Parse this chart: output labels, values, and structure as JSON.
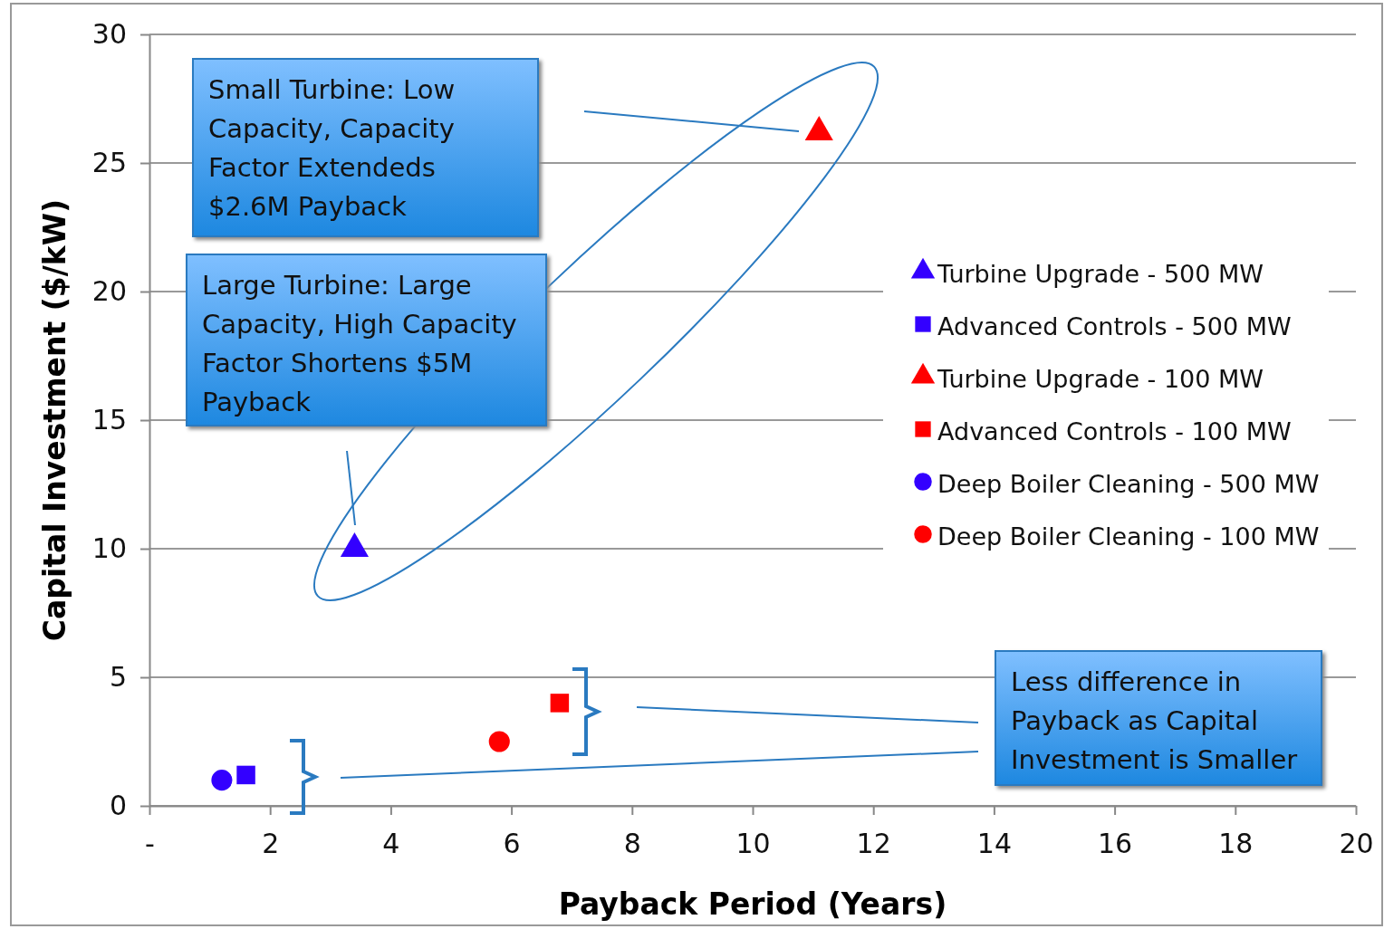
{
  "chart_data": {
    "type": "scatter",
    "xlabel": "Payback Period (Years)",
    "ylabel": "Capital Investment ($/kW)",
    "xlim": [
      0,
      20
    ],
    "xticks": [
      {
        "value": 0,
        "label": "-"
      },
      2,
      4,
      6,
      8,
      10,
      12,
      14,
      16,
      18,
      20
    ],
    "ylim": [
      0,
      30
    ],
    "yticks": [
      0,
      5,
      10,
      15,
      20,
      25,
      30
    ],
    "grid": "y",
    "legend": "right",
    "series": [
      {
        "name": "Turbine Upgrade - 500 MW",
        "color": "#3300ff",
        "marker": "triangle",
        "x": [
          3.4
        ],
        "values": [
          10
        ]
      },
      {
        "name": "Advanced Controls - 500 MW",
        "color": "#3300ff",
        "marker": "square",
        "x": [
          1.6
        ],
        "values": [
          1.2
        ]
      },
      {
        "name": "Turbine Upgrade - 100 MW",
        "color": "#ff0000",
        "marker": "triangle",
        "x": [
          11.1
        ],
        "values": [
          26.2
        ]
      },
      {
        "name": "Advanced Controls - 100 MW",
        "color": "#ff0000",
        "marker": "square",
        "x": [
          6.8
        ],
        "values": [
          4
        ]
      },
      {
        "name": "Deep Boiler Cleaning - 500 MW",
        "color": "#3300ff",
        "marker": "circle",
        "x": [
          1.2
        ],
        "values": [
          1
        ]
      },
      {
        "name": "Deep Boiler Cleaning - 100 MW",
        "color": "#ff0000",
        "marker": "circle",
        "x": [
          5.8
        ],
        "values": [
          2.5
        ]
      }
    ],
    "annotations": [
      "Small Turbine: Low Capacity, Capacity Factor Extendeds $2.6M Payback",
      "Large Turbine: Large Capacity, High Capacity Factor Shortens $5M Payback",
      "Less difference in Payback as Capital Investment is Smaller"
    ]
  }
}
